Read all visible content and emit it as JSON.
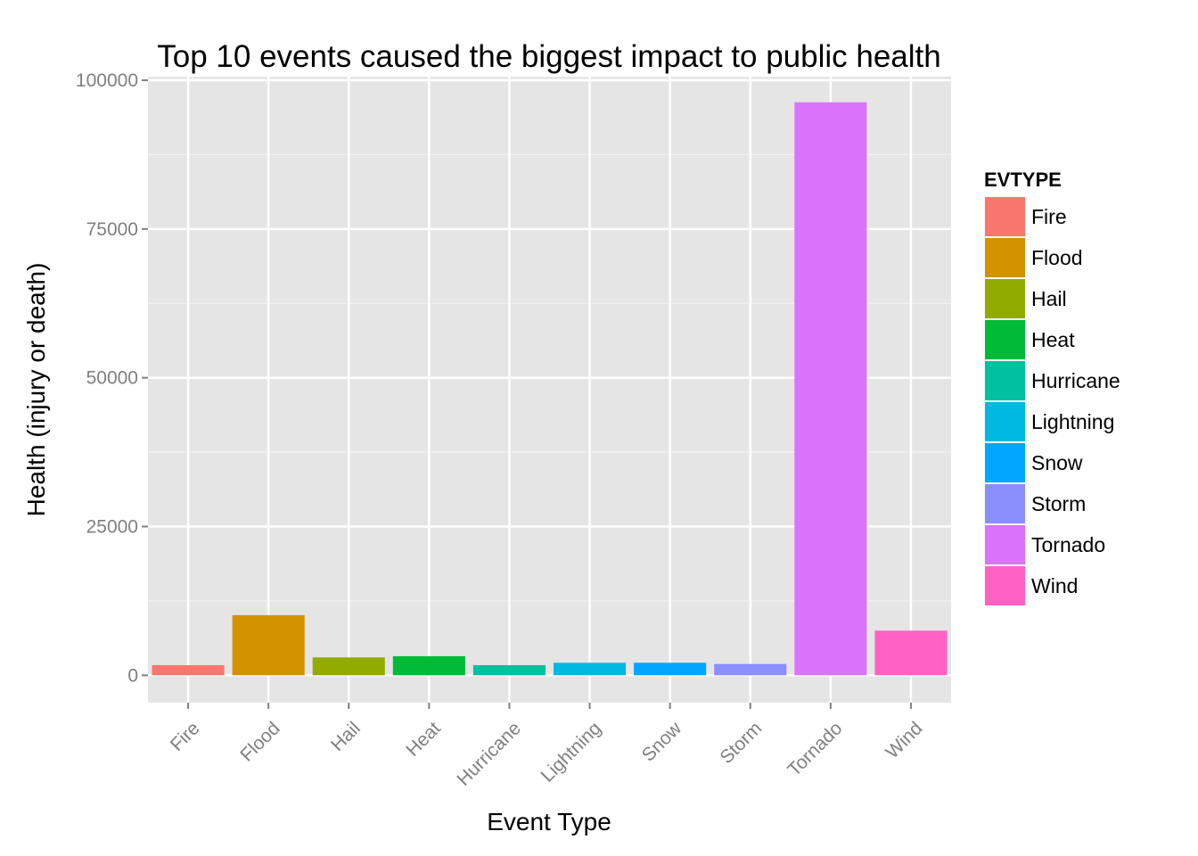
{
  "chart_data": {
    "type": "bar",
    "title": "Top 10 events caused the biggest impact to public health",
    "xlabel": "Event Type",
    "ylabel": "Health (injury or death)",
    "categories": [
      "Fire",
      "Flood",
      "Hail",
      "Heat",
      "Hurricane",
      "Lightning",
      "Snow",
      "Storm",
      "Tornado",
      "Wind"
    ],
    "values": [
      1700,
      10100,
      3000,
      3200,
      1700,
      2100,
      2100,
      1900,
      96300,
      7500
    ],
    "colors": [
      "#F8766D",
      "#D39200",
      "#93AA00",
      "#00BA38",
      "#00C19F",
      "#00B9E3",
      "#00A6FF",
      "#8A8EFF",
      "#DB72FB",
      "#FF61C3"
    ],
    "ylim": [
      -4600,
      100600
    ],
    "yticks": [
      0,
      25000,
      50000,
      75000,
      100000
    ],
    "ytick_labels": [
      "0",
      "25000",
      "50000",
      "75000",
      "100000"
    ],
    "grid": true,
    "legend": {
      "title": "EVTYPE",
      "position": "right",
      "entries": [
        "Fire",
        "Flood",
        "Hail",
        "Heat",
        "Hurricane",
        "Lightning",
        "Snow",
        "Storm",
        "Tornado",
        "Wind"
      ]
    }
  }
}
